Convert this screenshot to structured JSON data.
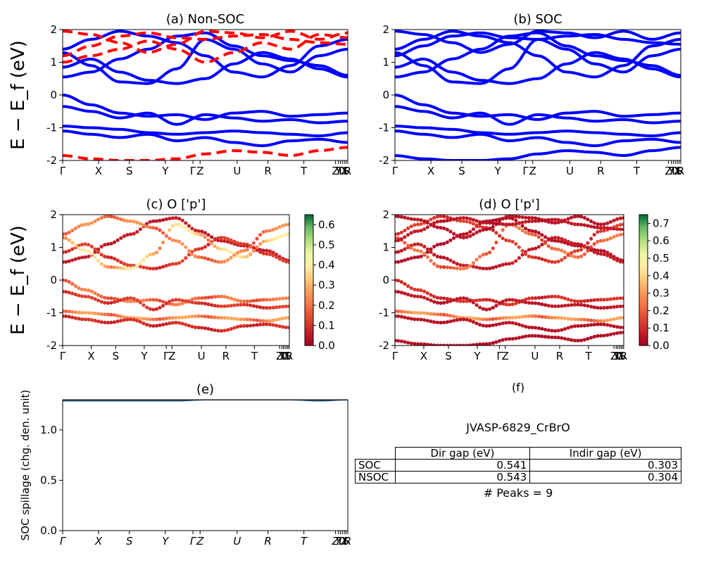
{
  "chart_data": [
    {
      "panel": "a",
      "type": "line",
      "title": "(a) Non-SOC",
      "ylabel": "E − E_f (eV)",
      "ylim": [
        -2,
        2
      ],
      "yticks": [
        -2,
        -1,
        0,
        1,
        2
      ],
      "xticks": [
        "Γ",
        "X",
        "S",
        "Y",
        "Γ",
        "Z",
        "U",
        "R",
        "T",
        "Z",
        "Y",
        "T",
        "U",
        "X",
        "S",
        "R"
      ],
      "series": [
        {
          "style": "solid",
          "color": "#0000ff",
          "x": [
            0,
            10,
            20,
            30,
            40,
            50,
            60,
            70,
            80,
            90,
            100
          ],
          "bands": [
            [
              0.55,
              0.7,
              1.1,
              1.4,
              1.8,
              1.9,
              1.5,
              1.2,
              1.05,
              0.9,
              0.6
            ],
            [
              0.85,
              1.1,
              0.7,
              0.45,
              0.35,
              0.5,
              0.95,
              1.3,
              1.1,
              0.8,
              0.55
            ],
            [
              1.3,
              0.9,
              0.4,
              0.35,
              0.8,
              1.7,
              1.4,
              0.95,
              0.7,
              1.2,
              1.4
            ],
            [
              1.4,
              1.7,
              1.95,
              1.8,
              1.6,
              1.2,
              0.7,
              0.55,
              0.9,
              1.5,
              1.7
            ],
            [
              0.0,
              -0.3,
              -0.55,
              -0.65,
              -0.6,
              -0.75,
              -0.55,
              -0.5,
              -0.65,
              -0.6,
              -0.55
            ],
            [
              -0.35,
              -0.5,
              -0.7,
              -0.55,
              -0.9,
              -0.6,
              -0.7,
              -0.8,
              -0.75,
              -0.85,
              -0.8
            ],
            [
              -0.95,
              -1.0,
              -1.05,
              -1.15,
              -1.2,
              -1.15,
              -1.1,
              -1.15,
              -1.2,
              -1.25,
              -1.15
            ],
            [
              -1.1,
              -1.2,
              -1.3,
              -1.2,
              -1.4,
              -1.3,
              -1.45,
              -1.55,
              -1.4,
              -1.35,
              -1.45
            ]
          ]
        },
        {
          "style": "dashed",
          "color": "#ff0000",
          "x": [
            0,
            10,
            20,
            30,
            40,
            50,
            60,
            70,
            80,
            90,
            100
          ],
          "bands": [
            [
              1.2,
              1.5,
              1.8,
              1.9,
              1.75,
              1.7,
              1.8,
              1.85,
              1.7,
              1.6,
              1.55
            ],
            [
              1.95,
              1.85,
              1.6,
              1.3,
              1.55,
              1.95,
              1.9,
              1.75,
              1.95,
              1.7,
              1.9
            ],
            [
              1.0,
              1.2,
              1.4,
              1.65,
              1.4,
              1.0,
              1.3,
              1.6,
              1.4,
              1.85,
              1.75
            ],
            [
              -1.85,
              -1.95,
              -2.0,
              -2.0,
              -1.95,
              -1.8,
              -1.7,
              -1.75,
              -1.85,
              -1.7,
              -1.6
            ]
          ]
        }
      ]
    },
    {
      "panel": "b",
      "type": "line",
      "title": "(b) SOC",
      "ylim": [
        -2,
        2
      ],
      "yticks": [
        -2,
        -1,
        0,
        1,
        2
      ],
      "xticks": [
        "Γ",
        "X",
        "S",
        "Y",
        "Γ",
        "Z",
        "U",
        "R",
        "T",
        "Z",
        "Y",
        "T",
        "U",
        "X",
        "S",
        "R"
      ],
      "series": [
        {
          "style": "solid",
          "color": "#0000ff",
          "x": [
            0,
            10,
            20,
            30,
            40,
            50,
            60,
            70,
            80,
            90,
            100
          ],
          "bands": [
            [
              0.55,
              0.7,
              1.1,
              1.4,
              1.8,
              1.9,
              1.5,
              1.2,
              1.05,
              0.9,
              0.6
            ],
            [
              0.85,
              1.1,
              0.7,
              0.45,
              0.35,
              0.5,
              0.95,
              1.3,
              1.1,
              0.8,
              0.55
            ],
            [
              1.3,
              0.9,
              0.4,
              0.35,
              0.8,
              1.7,
              1.4,
              0.95,
              0.7,
              1.2,
              1.4
            ],
            [
              1.4,
              1.7,
              1.95,
              1.8,
              1.6,
              1.2,
              0.7,
              0.55,
              0.9,
              1.5,
              1.7
            ],
            [
              1.2,
              1.5,
              1.8,
              1.9,
              1.75,
              1.7,
              1.8,
              1.85,
              1.7,
              1.6,
              1.55
            ],
            [
              1.95,
              1.85,
              1.6,
              1.3,
              1.55,
              1.95,
              1.9,
              1.75,
              1.95,
              1.7,
              1.9
            ],
            [
              0.0,
              -0.3,
              -0.55,
              -0.65,
              -0.6,
              -0.75,
              -0.55,
              -0.5,
              -0.65,
              -0.6,
              -0.55
            ],
            [
              -0.35,
              -0.5,
              -0.7,
              -0.55,
              -0.9,
              -0.6,
              -0.7,
              -0.8,
              -0.75,
              -0.85,
              -0.8
            ],
            [
              -0.95,
              -1.0,
              -1.05,
              -1.15,
              -1.2,
              -1.15,
              -1.1,
              -1.15,
              -1.2,
              -1.25,
              -1.15
            ],
            [
              -1.1,
              -1.2,
              -1.3,
              -1.2,
              -1.4,
              -1.3,
              -1.45,
              -1.55,
              -1.4,
              -1.35,
              -1.45
            ],
            [
              -1.85,
              -1.95,
              -2.0,
              -2.0,
              -1.95,
              -1.8,
              -1.7,
              -1.75,
              -1.85,
              -1.7,
              -1.6
            ]
          ]
        }
      ]
    },
    {
      "panel": "c",
      "type": "scatter",
      "title": "(c)  O ['p']",
      "ylabel": "E − E_f (eV)",
      "ylim": [
        -2,
        2
      ],
      "yticks": [
        -2,
        -1,
        0,
        1,
        2
      ],
      "xticks": [
        "Γ",
        "X",
        "S",
        "Y",
        "Γ",
        "Z",
        "U",
        "R",
        "T",
        "Z",
        "Y",
        "T",
        "U",
        "X",
        "S",
        "R"
      ],
      "colorbar": {
        "min": 0.0,
        "max": 0.65,
        "ticks": [
          "0.0",
          "0.1",
          "0.2",
          "0.3",
          "0.4",
          "0.5",
          "0.6"
        ]
      },
      "bands": [
        {
          "y": [
            0.55,
            0.7,
            1.1,
            1.4,
            1.8,
            1.9,
            1.5,
            1.2,
            1.05,
            0.9,
            0.6
          ],
          "weight": 0.05
        },
        {
          "y": [
            0.85,
            1.1,
            0.7,
            0.45,
            0.35,
            0.5,
            0.95,
            1.3,
            1.1,
            0.8,
            0.55
          ],
          "weight": 0.1
        },
        {
          "y": [
            1.3,
            0.9,
            0.4,
            0.35,
            0.8,
            1.7,
            1.4,
            0.95,
            0.7,
            1.2,
            1.4
          ],
          "weight": 0.3
        },
        {
          "y": [
            1.4,
            1.7,
            1.95,
            1.8,
            1.6,
            1.2,
            0.7,
            0.55,
            0.9,
            1.5,
            1.7
          ],
          "weight": 0.2
        },
        {
          "y": [
            0.0,
            -0.3,
            -0.55,
            -0.65,
            -0.6,
            -0.75,
            -0.55,
            -0.5,
            -0.65,
            -0.6,
            -0.55
          ],
          "weight": 0.18
        },
        {
          "y": [
            -0.35,
            -0.5,
            -0.7,
            -0.55,
            -0.9,
            -0.6,
            -0.7,
            -0.8,
            -0.75,
            -0.85,
            -0.8
          ],
          "weight": 0.1
        },
        {
          "y": [
            -0.95,
            -1.0,
            -1.05,
            -1.15,
            -1.2,
            -1.15,
            -1.1,
            -1.15,
            -1.2,
            -1.25,
            -1.15
          ],
          "weight": 0.22
        },
        {
          "y": [
            -1.1,
            -1.2,
            -1.3,
            -1.2,
            -1.4,
            -1.3,
            -1.45,
            -1.55,
            -1.4,
            -1.35,
            -1.45
          ],
          "weight": 0.08
        }
      ]
    },
    {
      "panel": "d",
      "type": "scatter",
      "title": "(d) O ['p']",
      "ylim": [
        -2,
        2
      ],
      "yticks": [
        -2,
        -1,
        0,
        1,
        2
      ],
      "xticks": [
        "Γ",
        "X",
        "S",
        "Y",
        "Γ",
        "Z",
        "U",
        "R",
        "T",
        "Z",
        "Y",
        "T",
        "U",
        "X",
        "S",
        "R"
      ],
      "colorbar": {
        "min": 0.0,
        "max": 0.75,
        "ticks": [
          "0.0",
          "0.1",
          "0.2",
          "0.3",
          "0.4",
          "0.5",
          "0.6",
          "0.7"
        ]
      },
      "bands": [
        {
          "y": [
            0.55,
            0.7,
            1.1,
            1.4,
            1.8,
            1.9,
            1.5,
            1.2,
            1.05,
            0.9,
            0.6
          ],
          "weight": 0.03
        },
        {
          "y": [
            0.85,
            1.1,
            0.7,
            0.45,
            0.35,
            0.5,
            0.95,
            1.3,
            1.1,
            0.8,
            0.55
          ],
          "weight": 0.06
        },
        {
          "y": [
            1.3,
            0.9,
            0.4,
            0.35,
            0.8,
            1.7,
            1.4,
            0.95,
            0.7,
            1.2,
            1.4
          ],
          "weight": 0.2
        },
        {
          "y": [
            1.4,
            1.7,
            1.95,
            1.8,
            1.6,
            1.2,
            0.7,
            0.55,
            0.9,
            1.5,
            1.7
          ],
          "weight": 0.12
        },
        {
          "y": [
            1.2,
            1.5,
            1.8,
            1.9,
            1.75,
            1.7,
            1.8,
            1.85,
            1.7,
            1.6,
            1.55
          ],
          "weight": 0.05
        },
        {
          "y": [
            1.95,
            1.85,
            1.6,
            1.3,
            1.55,
            1.95,
            1.9,
            1.75,
            1.95,
            1.7,
            1.9
          ],
          "weight": 0.04
        },
        {
          "y": [
            0.0,
            -0.3,
            -0.55,
            -0.65,
            -0.6,
            -0.75,
            -0.55,
            -0.5,
            -0.65,
            -0.6,
            -0.55
          ],
          "weight": 0.1
        },
        {
          "y": [
            -0.35,
            -0.5,
            -0.7,
            -0.55,
            -0.9,
            -0.6,
            -0.7,
            -0.8,
            -0.75,
            -0.85,
            -0.8
          ],
          "weight": 0.05
        },
        {
          "y": [
            -0.95,
            -1.0,
            -1.05,
            -1.15,
            -1.2,
            -1.15,
            -1.1,
            -1.15,
            -1.2,
            -1.25,
            -1.15
          ],
          "weight": 0.25
        },
        {
          "y": [
            -1.1,
            -1.2,
            -1.3,
            -1.2,
            -1.4,
            -1.3,
            -1.45,
            -1.55,
            -1.4,
            -1.35,
            -1.45
          ],
          "weight": 0.04
        },
        {
          "y": [
            -1.85,
            -1.95,
            -2.0,
            -2.0,
            -1.95,
            -1.8,
            -1.7,
            -1.75,
            -1.85,
            -1.7,
            -1.6
          ],
          "weight": 0.03
        }
      ]
    },
    {
      "panel": "e",
      "type": "line",
      "title": "(e)",
      "ylabel": "SOC spillage (chg. den. unit)",
      "ylim": [
        0.0,
        1.3
      ],
      "yticks": [
        "0.0",
        "0.5",
        "1.0"
      ],
      "xticks": [
        "Γ",
        "X",
        "S",
        "Y",
        "Γ",
        "Z",
        "U",
        "R",
        "T",
        "Z",
        "Y",
        "T",
        "U",
        "X",
        "S",
        "R"
      ],
      "series": [
        {
          "color": "#1f4e79",
          "x": [
            0,
            10,
            20,
            30,
            40,
            50,
            60,
            70,
            80,
            90,
            100
          ],
          "values": [
            1.29,
            1.29,
            1.29,
            1.29,
            1.29,
            1.3,
            1.3,
            1.3,
            1.3,
            1.29,
            1.3
          ]
        }
      ]
    },
    {
      "panel": "f",
      "type": "table",
      "title": "(f)",
      "subtitle": "JVASP-6829_CrBrO",
      "headers": [
        "",
        "Dir gap (eV)",
        "Indir gap (eV)"
      ],
      "rows": [
        [
          "SOC",
          "0.541",
          "0.303"
        ],
        [
          "NSOC",
          "0.543",
          "0.304"
        ]
      ],
      "footer": "# Peaks = 9"
    }
  ]
}
